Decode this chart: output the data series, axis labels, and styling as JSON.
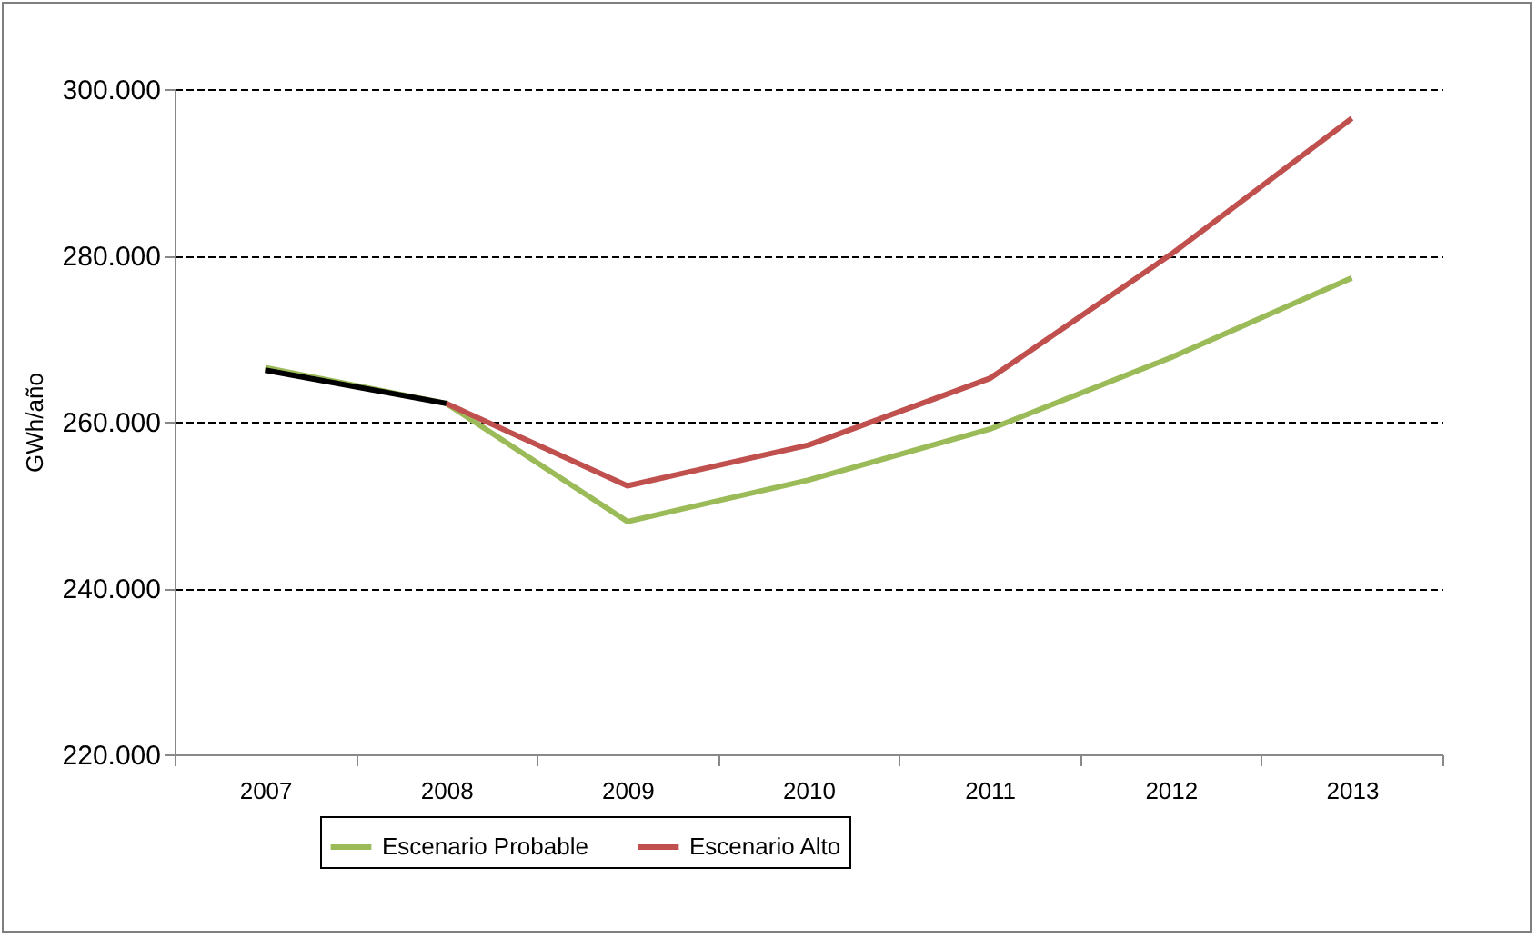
{
  "chart_data": {
    "type": "line",
    "ylabel": "GWh/año",
    "categories": [
      "2007",
      "2008",
      "2009",
      "2010",
      "2011",
      "2012",
      "2013"
    ],
    "ylim": [
      220000,
      300000
    ],
    "yticks": [
      {
        "value": 220000,
        "label": "220.000"
      },
      {
        "value": 240000,
        "label": "240.000"
      },
      {
        "value": 260000,
        "label": "260.000"
      },
      {
        "value": 280000,
        "label": "280.000"
      },
      {
        "value": 300000,
        "label": "300.000"
      }
    ],
    "series": [
      {
        "name": "Escenario Probable",
        "color": "#9bbb59",
        "values": [
          266500,
          262200,
          248000,
          253000,
          259100,
          267700,
          277300
        ]
      },
      {
        "name": "Escenario Alto",
        "color": "#c0504d",
        "values": [
          null,
          262200,
          252300,
          257200,
          265200,
          280100,
          296500
        ]
      },
      {
        "color": "#000000",
        "values": [
          266200,
          262200,
          null,
          null,
          null,
          null,
          null
        ]
      }
    ],
    "grid": "y",
    "legend": "bottom",
    "line_style": "solid",
    "marker": "none"
  }
}
